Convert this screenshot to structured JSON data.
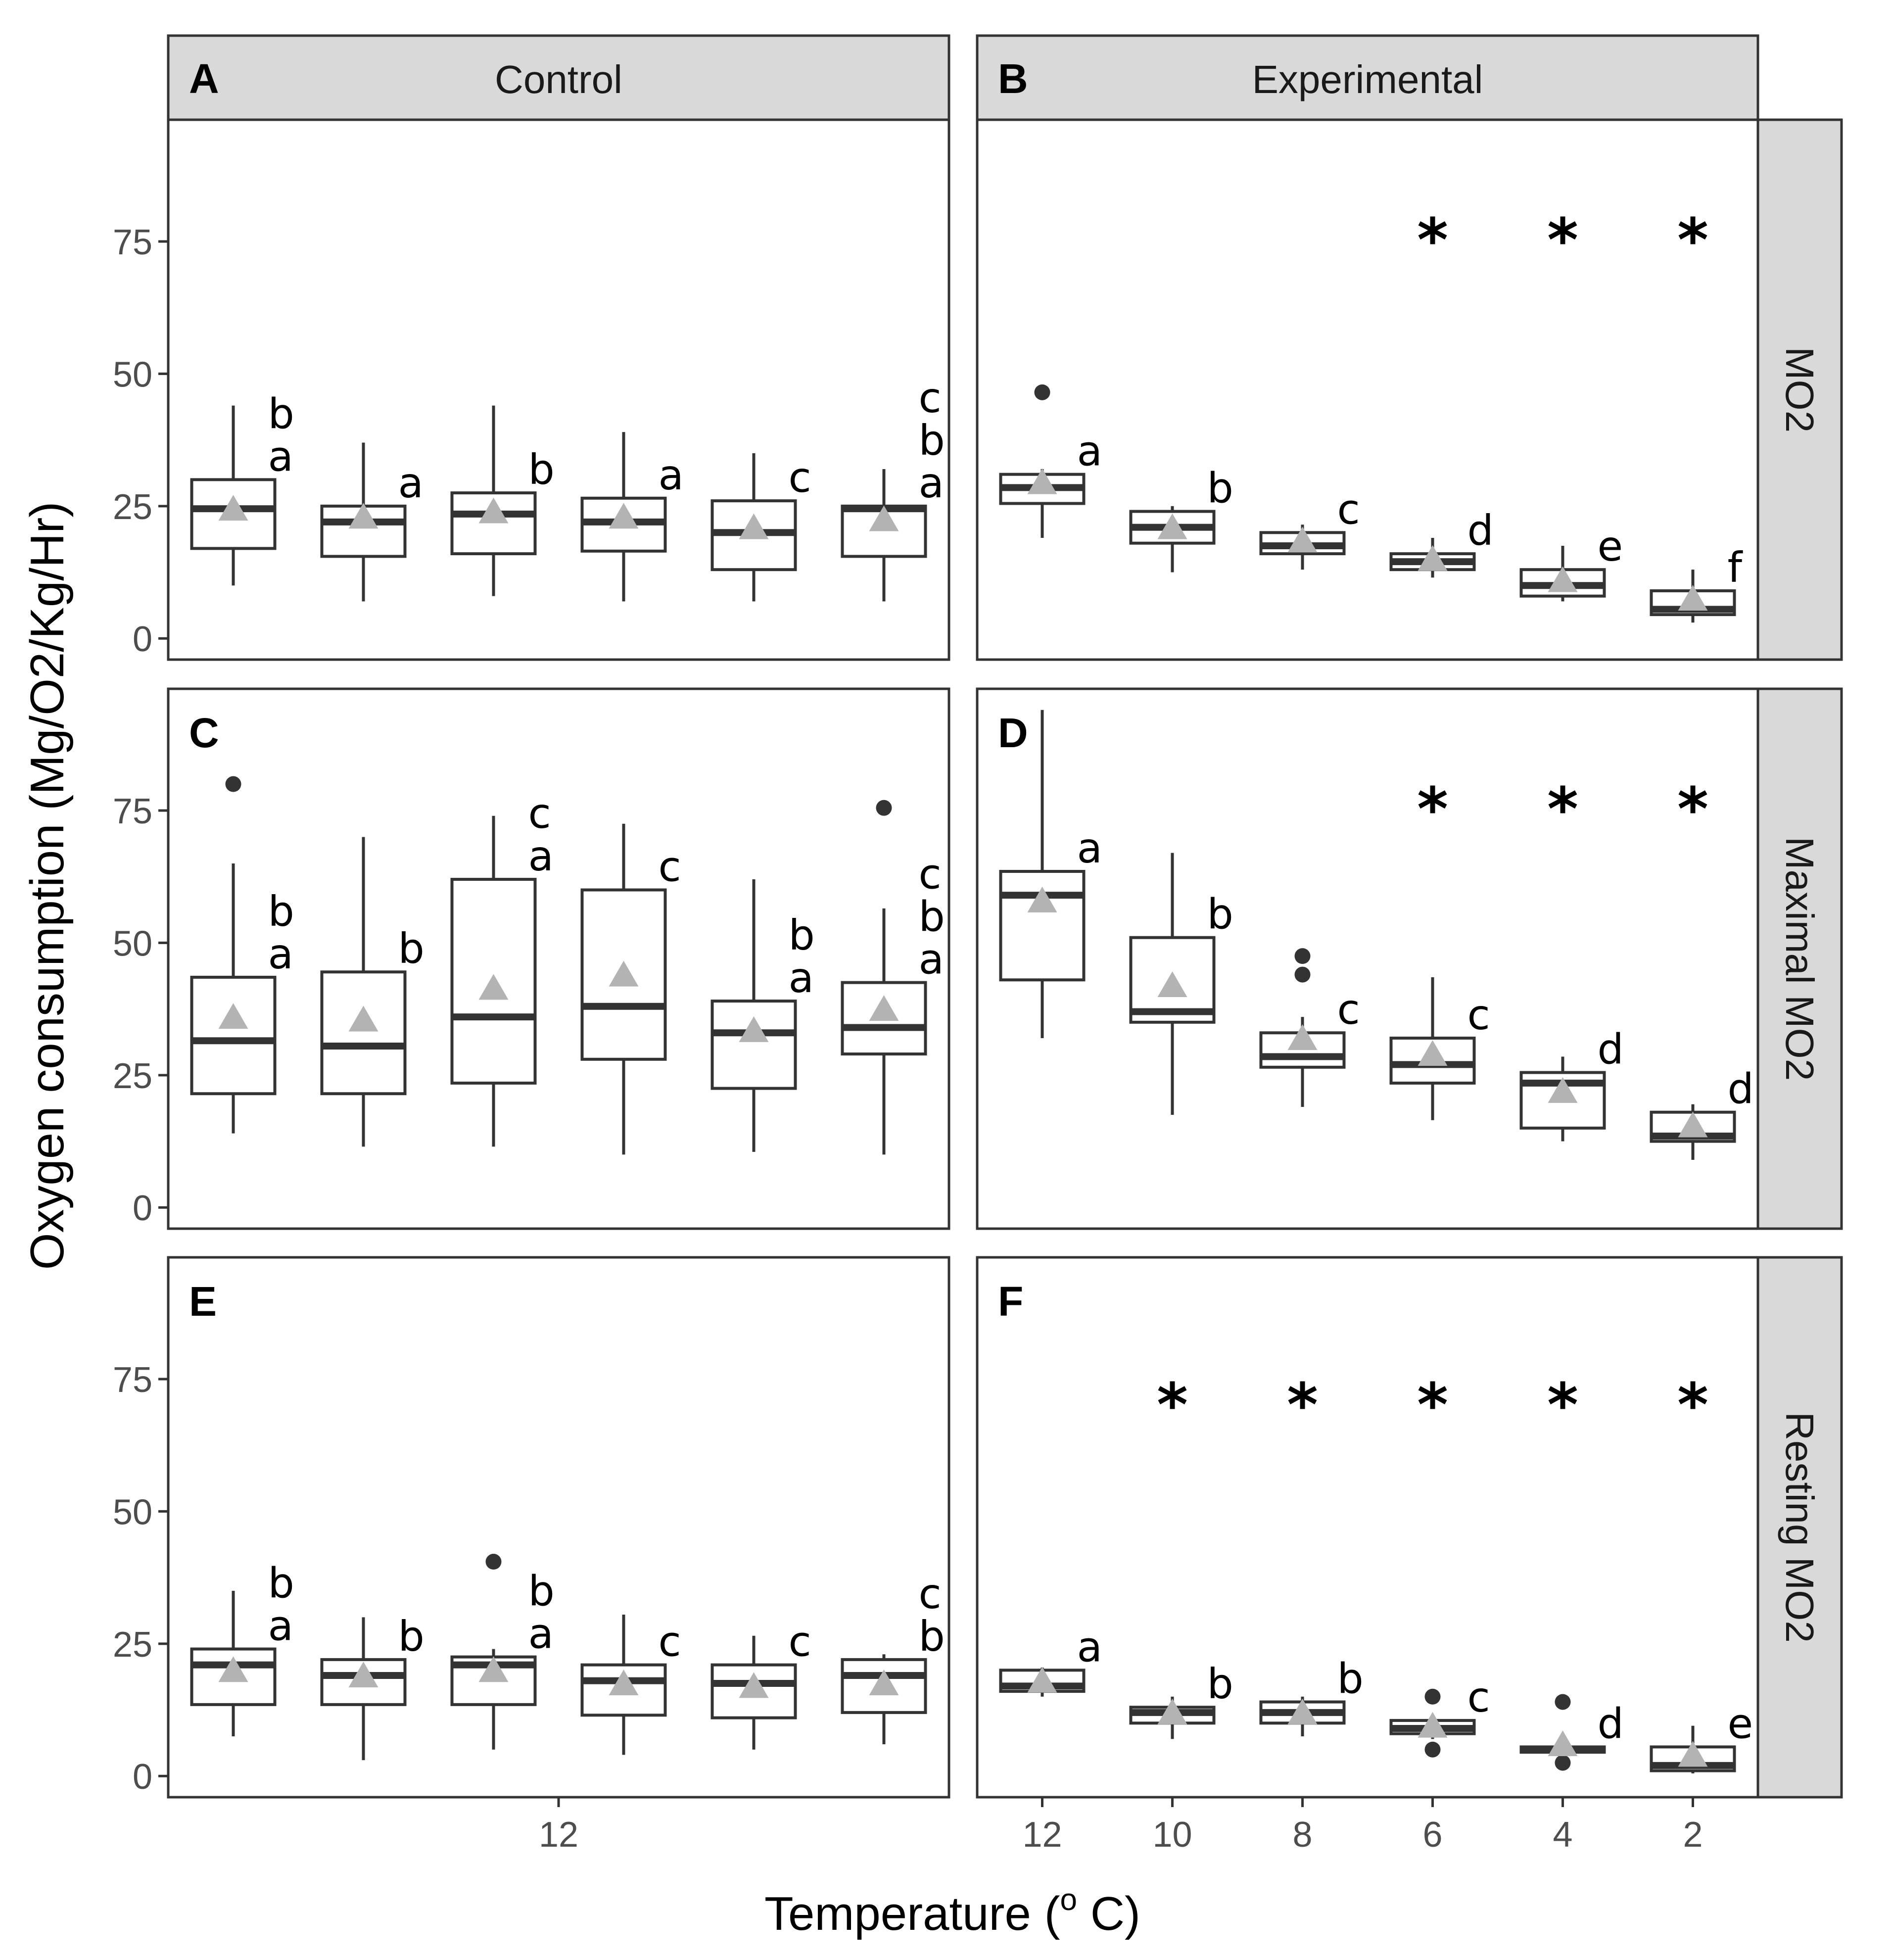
{
  "axis": {
    "ylabel": "Oxygen consumption (Mg/O2/Kg/Hr)",
    "xlabel_main": "Temperature  (",
    "xlabel_sup": "o",
    "xlabel_tail": " C)"
  },
  "columns": [
    "Control",
    "Experimental"
  ],
  "rows": [
    "MO2",
    "Maximal MO2",
    "Resting MO2"
  ],
  "panel_letters": [
    "A",
    "B",
    "C",
    "D",
    "E",
    "F"
  ],
  "colors": {
    "box": "#333333",
    "mean": "#b3b3b3",
    "strip": "#d9d9d9",
    "frame": "#333333"
  },
  "chart_data": {
    "type": "boxplot",
    "ylim": [
      -4,
      98
    ],
    "yticks": [
      0,
      25,
      50,
      75
    ],
    "control_xtick": "12",
    "experimental_xticks": [
      "12",
      "10",
      "8",
      "6",
      "4",
      "2"
    ],
    "legend": "none",
    "grid": false,
    "panels": [
      {
        "letter": "A",
        "column": "Control",
        "row": "MO2",
        "boxes": [
          {
            "min": 10,
            "q1": 17,
            "median": 24.5,
            "q3": 30,
            "max": 44,
            "mean": 24.5,
            "outliers": [],
            "label": [
              "b",
              "a"
            ]
          },
          {
            "min": 7,
            "q1": 15.5,
            "median": 22,
            "q3": 25,
            "max": 37,
            "mean": 23,
            "outliers": [],
            "label": [
              "a"
            ]
          },
          {
            "min": 8,
            "q1": 16,
            "median": 23.5,
            "q3": 27.5,
            "max": 44,
            "mean": 24,
            "outliers": [],
            "label": [
              "b"
            ]
          },
          {
            "min": 7,
            "q1": 16.5,
            "median": 22,
            "q3": 26.5,
            "max": 39,
            "mean": 23,
            "outliers": [],
            "label": [
              "a"
            ]
          },
          {
            "min": 7,
            "q1": 13,
            "median": 20,
            "q3": 26,
            "max": 35,
            "mean": 21,
            "outliers": [],
            "label": [
              "c"
            ]
          },
          {
            "min": 7,
            "q1": 15.5,
            "median": 24.5,
            "q3": 25,
            "max": 32,
            "mean": 22.5,
            "outliers": [],
            "label": [
              "c",
              "b",
              "a"
            ]
          }
        ],
        "stars": [
          false,
          false,
          false,
          false,
          false,
          false
        ]
      },
      {
        "letter": "B",
        "column": "Experimental",
        "row": "MO2",
        "boxes": [
          {
            "min": 19,
            "q1": 25.5,
            "median": 28.5,
            "q3": 31,
            "max": 32,
            "mean": 29.5,
            "outliers": [
              46.5
            ],
            "label": [
              "a"
            ]
          },
          {
            "min": 12.5,
            "q1": 18,
            "median": 21,
            "q3": 24,
            "max": 25,
            "mean": 21,
            "outliers": [],
            "label": [
              "b"
            ]
          },
          {
            "min": 13,
            "q1": 16,
            "median": 17.5,
            "q3": 20,
            "max": 21.5,
            "mean": 18.5,
            "outliers": [],
            "label": [
              "c"
            ]
          },
          {
            "min": 11.5,
            "q1": 13,
            "median": 14.5,
            "q3": 16,
            "max": 19,
            "mean": 15,
            "outliers": [],
            "label": [
              "d"
            ]
          },
          {
            "min": 7,
            "q1": 8,
            "median": 10,
            "q3": 13,
            "max": 17.5,
            "mean": 11,
            "outliers": [],
            "label": [
              "e"
            ]
          },
          {
            "min": 3,
            "q1": 4.5,
            "median": 5.5,
            "q3": 9,
            "max": 13,
            "mean": 7.5,
            "outliers": [],
            "label": [
              "f"
            ]
          }
        ],
        "stars": [
          false,
          false,
          false,
          true,
          true,
          true
        ]
      },
      {
        "letter": "C",
        "column": "Control",
        "row": "Maximal MO2",
        "boxes": [
          {
            "min": 14,
            "q1": 21.5,
            "median": 31.5,
            "q3": 43.5,
            "max": 65,
            "mean": 36,
            "outliers": [
              80
            ],
            "label": [
              "b",
              "a"
            ]
          },
          {
            "min": 11.5,
            "q1": 21.5,
            "median": 30.5,
            "q3": 44.5,
            "max": 70,
            "mean": 35.5,
            "outliers": [],
            "label": [
              "b"
            ]
          },
          {
            "min": 11.5,
            "q1": 23.5,
            "median": 36,
            "q3": 62,
            "max": 74,
            "mean": 41.5,
            "outliers": [],
            "label": [
              "c",
              "a"
            ]
          },
          {
            "min": 10,
            "q1": 28,
            "median": 38,
            "q3": 60,
            "max": 72.5,
            "mean": 44,
            "outliers": [],
            "label": [
              "c"
            ]
          },
          {
            "min": 10.5,
            "q1": 22.5,
            "median": 33,
            "q3": 39,
            "max": 62,
            "mean": 33.5,
            "outliers": [],
            "label": [
              "b",
              "a"
            ]
          },
          {
            "min": 10,
            "q1": 29,
            "median": 34,
            "q3": 42.5,
            "max": 56.5,
            "mean": 37.5,
            "outliers": [
              75.5
            ],
            "label": [
              "c",
              "b",
              "a"
            ]
          }
        ],
        "stars": [
          false,
          false,
          false,
          false,
          false,
          false
        ]
      },
      {
        "letter": "D",
        "column": "Experimental",
        "row": "Maximal MO2",
        "boxes": [
          {
            "min": 32,
            "q1": 43,
            "median": 59,
            "q3": 63.5,
            "max": 94,
            "mean": 58,
            "outliers": [],
            "label": [
              "a"
            ]
          },
          {
            "min": 17.5,
            "q1": 35,
            "median": 37,
            "q3": 51,
            "max": 67,
            "mean": 42,
            "outliers": [],
            "label": [
              "b"
            ]
          },
          {
            "min": 19,
            "q1": 26.5,
            "median": 28.5,
            "q3": 33,
            "max": 36,
            "mean": 32,
            "outliers": [
              44,
              47.5
            ],
            "label": [
              "c"
            ]
          },
          {
            "min": 16.5,
            "q1": 23.5,
            "median": 27,
            "q3": 32,
            "max": 43.5,
            "mean": 29,
            "outliers": [],
            "label": [
              "c"
            ]
          },
          {
            "min": 12.5,
            "q1": 15,
            "median": 23.5,
            "q3": 25.5,
            "max": 28.5,
            "mean": 22,
            "outliers": [],
            "label": [
              "d"
            ]
          },
          {
            "min": 9,
            "q1": 12.5,
            "median": 13.5,
            "q3": 18,
            "max": 19.5,
            "mean": 15.5,
            "outliers": [],
            "label": [
              "d"
            ]
          }
        ],
        "stars": [
          false,
          false,
          false,
          true,
          true,
          true
        ]
      },
      {
        "letter": "E",
        "column": "Control",
        "row": "Resting MO2",
        "boxes": [
          {
            "min": 7.5,
            "q1": 13.5,
            "median": 21,
            "q3": 24,
            "max": 35,
            "mean": 20,
            "outliers": [],
            "label": [
              "b",
              "a"
            ]
          },
          {
            "min": 3,
            "q1": 13.5,
            "median": 19,
            "q3": 22,
            "max": 30,
            "mean": 19,
            "outliers": [],
            "label": [
              "b"
            ]
          },
          {
            "min": 5,
            "q1": 13.5,
            "median": 21,
            "q3": 22.5,
            "max": 24,
            "mean": 20,
            "outliers": [
              40.5
            ],
            "label": [
              "b",
              "a"
            ]
          },
          {
            "min": 4,
            "q1": 11.5,
            "median": 18,
            "q3": 21,
            "max": 30.5,
            "mean": 17.5,
            "outliers": [],
            "label": [
              "c"
            ]
          },
          {
            "min": 5,
            "q1": 11,
            "median": 17.5,
            "q3": 21,
            "max": 26.5,
            "mean": 17,
            "outliers": [],
            "label": [
              "c"
            ]
          },
          {
            "min": 6,
            "q1": 12,
            "median": 19,
            "q3": 22,
            "max": 23,
            "mean": 17.5,
            "outliers": [],
            "label": [
              "c",
              "b"
            ]
          }
        ],
        "stars": [
          false,
          false,
          false,
          false,
          false,
          false
        ]
      },
      {
        "letter": "F",
        "column": "Experimental",
        "row": "Resting MO2",
        "boxes": [
          {
            "min": 15,
            "q1": 16,
            "median": 17,
            "q3": 20,
            "max": 20.5,
            "mean": 18,
            "outliers": [],
            "label": [
              "a"
            ]
          },
          {
            "min": 7,
            "q1": 10,
            "median": 12,
            "q3": 13,
            "max": 15,
            "mean": 12,
            "outliers": [],
            "label": [
              "b"
            ]
          },
          {
            "min": 7.5,
            "q1": 10,
            "median": 12,
            "q3": 14,
            "max": 15,
            "mean": 12,
            "outliers": [],
            "label": [
              "b"
            ]
          },
          {
            "min": 7,
            "q1": 8,
            "median": 9,
            "q3": 10.5,
            "max": 11,
            "mean": 9.5,
            "outliers": [
              5,
              15
            ],
            "label": [
              "c"
            ]
          },
          {
            "min": 4.5,
            "q1": 4.5,
            "median": 5,
            "q3": 5.5,
            "max": 6,
            "mean": 6,
            "outliers": [
              2.5,
              14
            ],
            "label": [
              "d"
            ]
          },
          {
            "min": 0.5,
            "q1": 1,
            "median": 2,
            "q3": 5.5,
            "max": 9.5,
            "mean": 4,
            "outliers": [],
            "label": [
              "e"
            ]
          }
        ],
        "stars": [
          false,
          true,
          true,
          true,
          true,
          true
        ]
      }
    ]
  }
}
